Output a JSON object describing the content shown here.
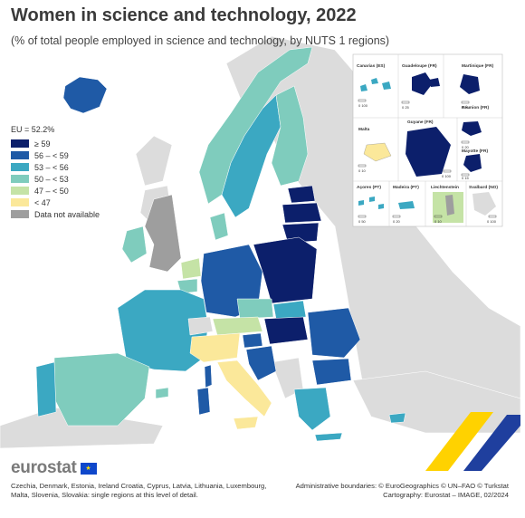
{
  "title": "Women in science and technology, 2022",
  "subtitle": "(% of total people employed in science and technology, by NUTS 1 regions)",
  "legend": {
    "eu_label": "EU = 52.2%",
    "classes": [
      {
        "label": "≥ 59",
        "color": "#0c1f6b"
      },
      {
        "label": "56 – < 59",
        "color": "#1f5aa6"
      },
      {
        "label": "53 – < 56",
        "color": "#3ba8c2"
      },
      {
        "label": "50 – < 53",
        "color": "#7fccbd"
      },
      {
        "label": "47 – < 50",
        "color": "#c5e3a6"
      },
      {
        "label": "< 47",
        "color": "#fbe89a"
      },
      {
        "label": "Data not available",
        "color": "#9e9e9e"
      }
    ]
  },
  "non_eu_color": "#dcdcdc",
  "sea_color": "#ffffff",
  "insets": [
    {
      "name": "Canarias (ES)",
      "scale": "0   100"
    },
    {
      "name": "Guadeloupe (FR)",
      "scale": "0   25"
    },
    {
      "name": "Martinique (FR)",
      "scale": "0   20"
    },
    {
      "name": "Réunion (FR)",
      "scale": "0   20"
    },
    {
      "name": "Malta",
      "scale": "0   10"
    },
    {
      "name": "Guyane (FR)",
      "scale": "0   100"
    },
    {
      "name": "Mayotte (FR)",
      "scale": "0   15"
    },
    {
      "name": "Açores (PT)",
      "scale": "0   50"
    },
    {
      "name": "Madeira (PT)",
      "scale": "0   20"
    },
    {
      "name": "Liechtenstein",
      "scale": "0   10"
    },
    {
      "name": "Svalbard (NO)",
      "scale": "0   100"
    }
  ],
  "logo": {
    "text": "eurostat"
  },
  "note": "Czechia, Denmark, Estonia, Ireland Croatia, Cyprus, Latvia, Lithuania, Luxembourg, Malta, Slovenia, Slovakia: single regions at this level of detail.",
  "credits": {
    "line1": "Administrative boundaries: © EuroGeographics © UN–FAO © Turkstat",
    "line2": "Cartography: Eurostat – IMAGE, 02/2024"
  }
}
